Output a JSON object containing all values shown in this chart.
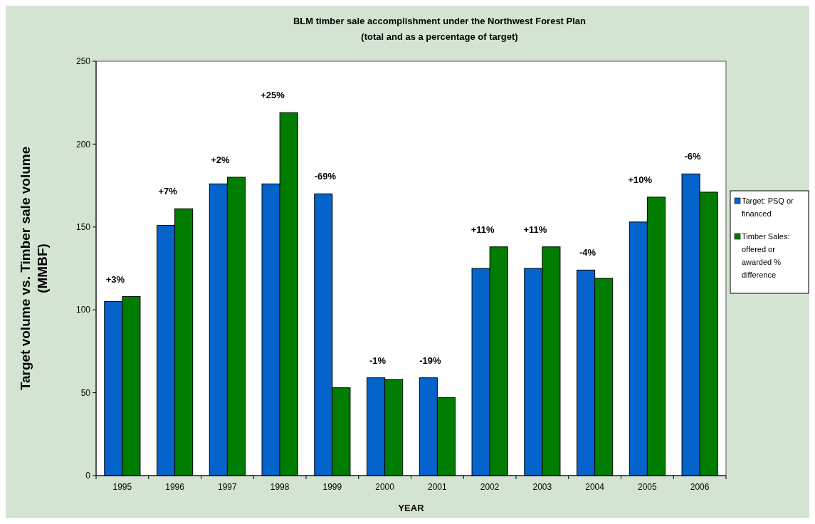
{
  "chart_data": {
    "type": "bar",
    "title": "BLM timber sale accomplishment under the Northwest Forest Plan",
    "subtitle": "(total and as a percentage of target)",
    "xlabel": "YEAR",
    "ylabel": "Target volume vs. Timber sale volume (MMBF)",
    "categories": [
      "1995",
      "1996",
      "1997",
      "1998",
      "1999",
      "2000",
      "2001",
      "2002",
      "2003",
      "2004",
      "2005",
      "2006"
    ],
    "series": [
      {
        "name": "Target: PSQ or financed",
        "color": "#0563cc",
        "values": [
          105,
          151,
          176,
          176,
          170,
          59,
          59,
          125,
          125,
          124,
          153,
          182
        ]
      },
      {
        "name": "Timber Sales: offered or awarded % difference",
        "color": "#007d00",
        "values": [
          108,
          161,
          180,
          219,
          53,
          58,
          47,
          138,
          138,
          119,
          168,
          171
        ]
      }
    ],
    "ylim": [
      0,
      250
    ],
    "yticks": [
      0,
      50,
      100,
      150,
      200,
      250
    ],
    "grid": false,
    "legend": "right",
    "annotations": [
      {
        "text": "+3%",
        "x": "1995",
        "y": 108
      },
      {
        "text": "+7%",
        "x": "1996",
        "y": 161
      },
      {
        "text": "+2%",
        "x": "1997",
        "y": 180
      },
      {
        "text": "+25%",
        "x": "1998",
        "y": 219
      },
      {
        "text": "-69%",
        "x": "1999",
        "y": 170
      },
      {
        "text": "-1%",
        "x": "2000",
        "y": 59
      },
      {
        "text": "-19%",
        "x": "2001",
        "y": 59
      },
      {
        "text": "+11%",
        "x": "2002",
        "y": 138
      },
      {
        "text": "+11%",
        "x": "2003",
        "y": 138
      },
      {
        "text": "-4%",
        "x": "2004",
        "y": 124
      },
      {
        "text": "+10%",
        "x": "2005",
        "y": 168
      },
      {
        "text": "-6%",
        "x": "2006",
        "y": 182
      }
    ]
  }
}
